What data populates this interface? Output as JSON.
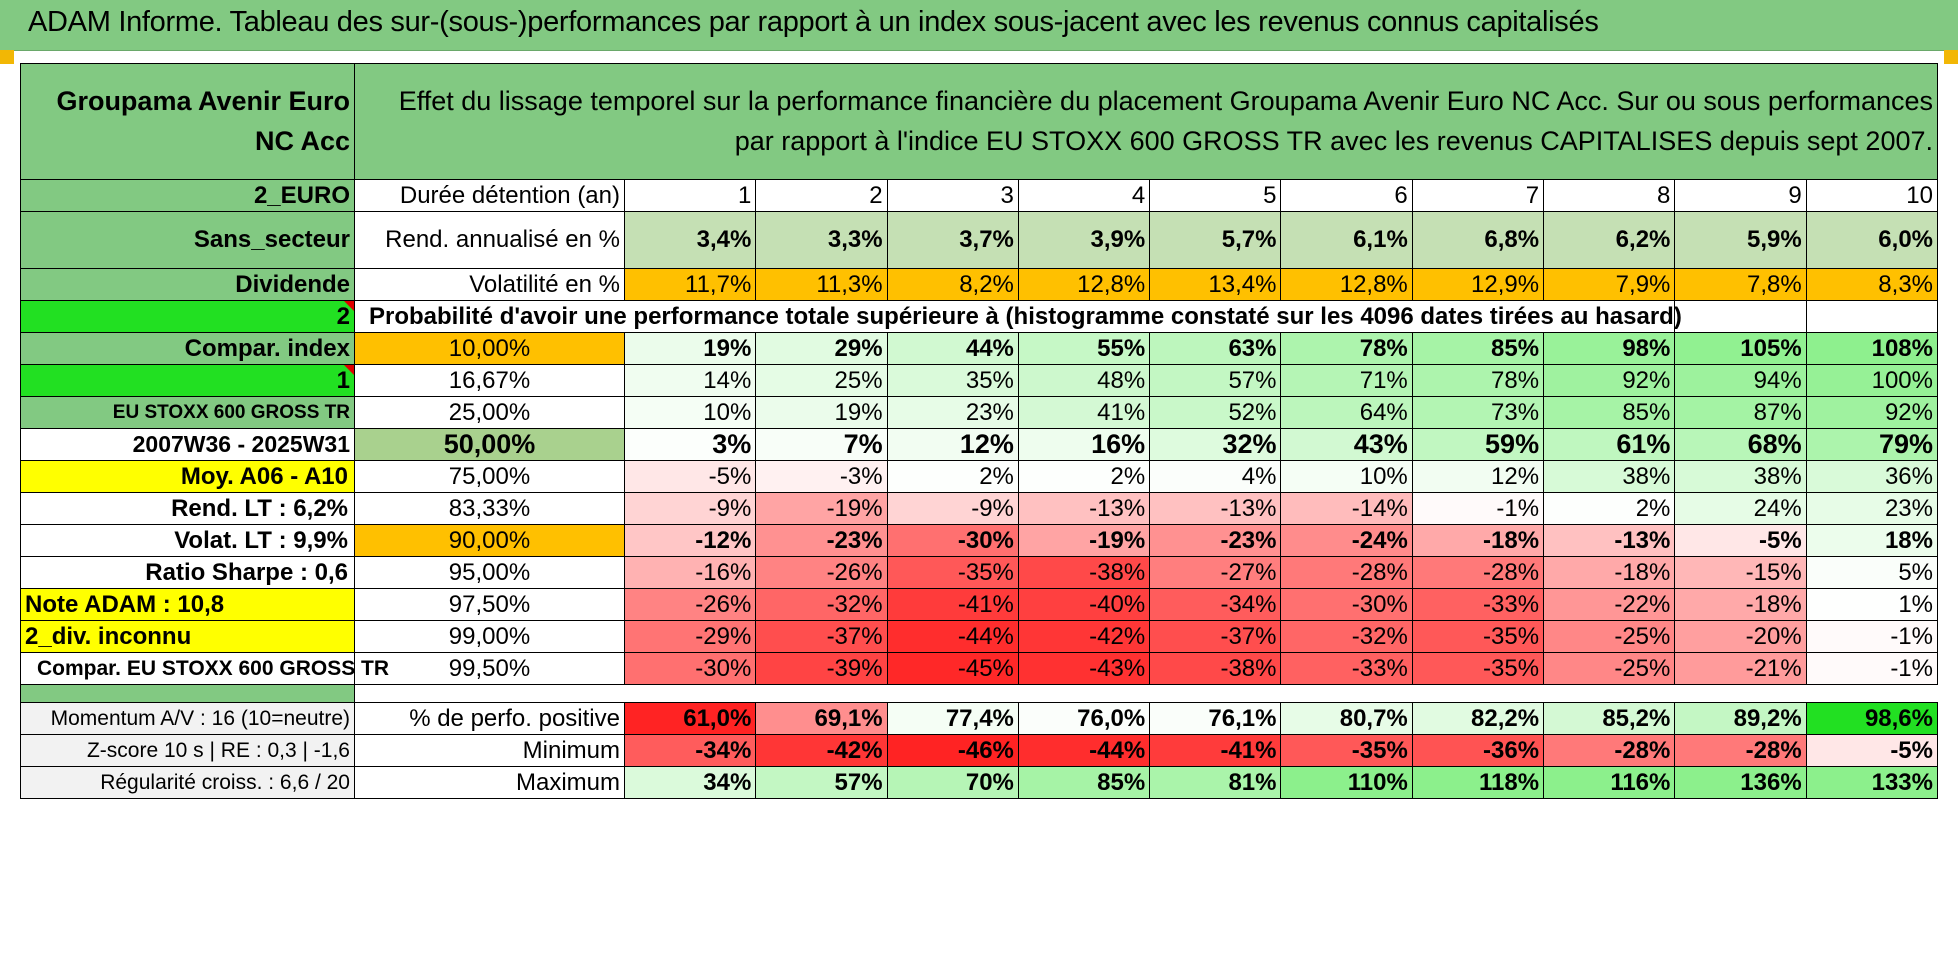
{
  "title": "ADAM Informe. Tableau des sur-(sous-)performances par rapport à un index sous-jacent avec les revenus connus capitalisés",
  "fund_name": "Groupama Avenir Euro NC Acc",
  "description": "Effet du lissage temporel sur la performance financière du placement Groupama Avenir Euro NC Acc. Sur ou sous performances par rapport à l'indice EU STOXX 600 GROSS TR avec les revenus CAPITALISES depuis sept 2007.",
  "side": {
    "zone": "2_EURO",
    "secteur": "Sans_secteur",
    "dividende": "Dividende",
    "num2": "2",
    "compar_index": "Compar. index",
    "num1": "1",
    "index_name": "EU STOXX 600 GROSS TR",
    "period": "2007W36 - 2025W31",
    "moy": "Moy. A06 - A10",
    "rend_lt": "Rend. LT :    6,2%",
    "volat_lt": "Volat. LT :    9,9%",
    "sharpe": "Ratio Sharpe :    0,6",
    "note": "Note ADAM : 10,8",
    "div": "2_div. inconnu",
    "compar2": "Compar. EU STOXX 600 GROSS TR"
  },
  "duree_label": "Durée détention (an)",
  "years": [
    "1",
    "2",
    "3",
    "4",
    "5",
    "6",
    "7",
    "8",
    "9",
    "10"
  ],
  "rend_label": "Rend. annualisé en %",
  "rend": [
    "3,4%",
    "3,3%",
    "3,7%",
    "3,9%",
    "5,7%",
    "6,1%",
    "6,8%",
    "6,2%",
    "5,9%",
    "6,0%"
  ],
  "vol_label": "Volatilité en %",
  "vol": [
    "11,7%",
    "11,3%",
    "8,2%",
    "12,8%",
    "13,4%",
    "12,8%",
    "12,9%",
    "7,9%",
    "7,8%",
    "8,3%"
  ],
  "prob_label": "Probabilité d'avoir une performance totale supérieure à (histogramme constaté sur les 4096 dates tirées au hasard)",
  "prob_rows": [
    {
      "p": "10,00%",
      "v": [
        "19%",
        "29%",
        "44%",
        "55%",
        "63%",
        "78%",
        "85%",
        "98%",
        "105%",
        "108%"
      ]
    },
    {
      "p": "16,67%",
      "v": [
        "14%",
        "25%",
        "35%",
        "48%",
        "57%",
        "71%",
        "78%",
        "92%",
        "94%",
        "100%"
      ]
    },
    {
      "p": "25,00%",
      "v": [
        "10%",
        "19%",
        "23%",
        "41%",
        "52%",
        "64%",
        "73%",
        "85%",
        "87%",
        "92%"
      ]
    },
    {
      "p": "50,00%",
      "v": [
        "3%",
        "7%",
        "12%",
        "16%",
        "32%",
        "43%",
        "59%",
        "61%",
        "68%",
        "79%"
      ]
    },
    {
      "p": "75,00%",
      "v": [
        "-5%",
        "-3%",
        "2%",
        "2%",
        "4%",
        "10%",
        "12%",
        "38%",
        "38%",
        "36%"
      ]
    },
    {
      "p": "83,33%",
      "v": [
        "-9%",
        "-19%",
        "-9%",
        "-13%",
        "-13%",
        "-14%",
        "-1%",
        "2%",
        "24%",
        "23%"
      ]
    },
    {
      "p": "90,00%",
      "v": [
        "-12%",
        "-23%",
        "-30%",
        "-19%",
        "-23%",
        "-24%",
        "-18%",
        "-13%",
        "-5%",
        "18%"
      ]
    },
    {
      "p": "95,00%",
      "v": [
        "-16%",
        "-26%",
        "-35%",
        "-38%",
        "-27%",
        "-28%",
        "-28%",
        "-18%",
        "-15%",
        "5%"
      ]
    },
    {
      "p": "97,50%",
      "v": [
        "-26%",
        "-32%",
        "-41%",
        "-40%",
        "-34%",
        "-30%",
        "-33%",
        "-22%",
        "-18%",
        "1%"
      ]
    },
    {
      "p": "99,00%",
      "v": [
        "-29%",
        "-37%",
        "-44%",
        "-42%",
        "-37%",
        "-32%",
        "-35%",
        "-25%",
        "-20%",
        "-1%"
      ]
    },
    {
      "p": "99,50%",
      "v": [
        "-30%",
        "-39%",
        "-45%",
        "-43%",
        "-38%",
        "-33%",
        "-35%",
        "-25%",
        "-21%",
        "-1%"
      ]
    }
  ],
  "bottom": [
    {
      "side": "Momentum A/V : 16 (10=neutre)",
      "label": "% de perfo. positive",
      "v": [
        "61,0%",
        "69,1%",
        "77,4%",
        "76,0%",
        "76,1%",
        "80,7%",
        "82,2%",
        "85,2%",
        "89,2%",
        "98,6%"
      ]
    },
    {
      "side": "Z-score 10 s | RE : 0,3 | -1,6",
      "label": "Minimum",
      "v": [
        "-34%",
        "-42%",
        "-46%",
        "-44%",
        "-41%",
        "-35%",
        "-36%",
        "-28%",
        "-28%",
        "-5%"
      ]
    },
    {
      "side": "Régularité croiss. : 6,6 / 20",
      "label": "Maximum",
      "v": [
        "34%",
        "57%",
        "70%",
        "85%",
        "81%",
        "110%",
        "118%",
        "116%",
        "136%",
        "133%"
      ]
    }
  ],
  "colors": {
    "header_green": "#82c982",
    "lime": "#22e022",
    "yellow": "#ffff00",
    "orange": "#ffc000",
    "negative": "#ff2020",
    "positive": "#22e022"
  }
}
